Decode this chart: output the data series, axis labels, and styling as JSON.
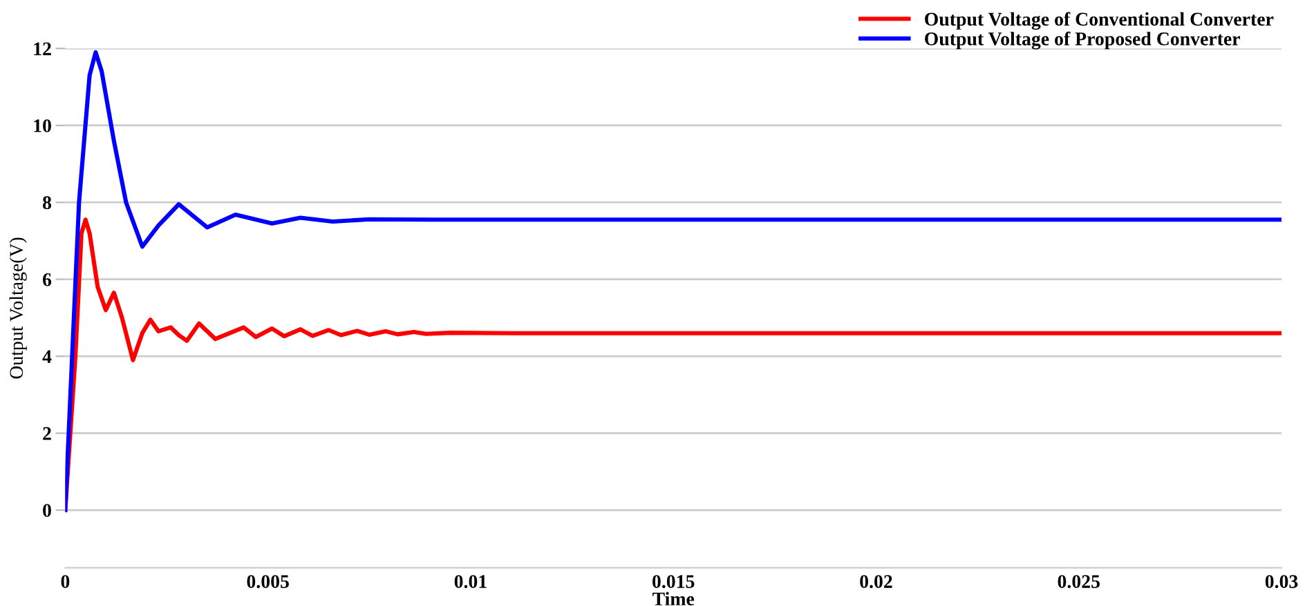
{
  "chart_data": {
    "type": "line",
    "xlabel": "Time",
    "ylabel": "Output Voltage(V)",
    "xlim": [
      0,
      0.03
    ],
    "ylim": [
      -1.5,
      12
    ],
    "xticks": [
      0,
      0.005,
      0.01,
      0.015,
      0.02,
      0.025,
      0.03
    ],
    "yticks": [
      0,
      2,
      4,
      6,
      8,
      10,
      12
    ],
    "grid": "y",
    "legend": "top right",
    "series": [
      {
        "name": "Output Voltage of Conventional Converter",
        "color": "#ff0000",
        "x": [
          0,
          0.00025,
          0.0004,
          0.0005,
          0.0006,
          0.0008,
          0.001,
          0.0012,
          0.0014,
          0.00167,
          0.0019,
          0.0021,
          0.0023,
          0.0026,
          0.0028,
          0.003,
          0.0033,
          0.0037,
          0.0044,
          0.0047,
          0.0051,
          0.0054,
          0.0058,
          0.0061,
          0.0065,
          0.0068,
          0.0072,
          0.0075,
          0.0079,
          0.0082,
          0.0086,
          0.0089,
          0.0095,
          0.011,
          0.03
        ],
        "values": [
          0,
          4,
          7.2,
          7.55,
          7.2,
          5.8,
          5.2,
          5.65,
          5.0,
          3.9,
          4.6,
          4.95,
          4.65,
          4.75,
          4.55,
          4.4,
          4.85,
          4.45,
          4.75,
          4.5,
          4.72,
          4.52,
          4.7,
          4.53,
          4.68,
          4.55,
          4.66,
          4.56,
          4.65,
          4.57,
          4.63,
          4.58,
          4.61,
          4.6,
          4.6
        ]
      },
      {
        "name": "Output Voltage of Proposed Converter",
        "color": "#0000ff",
        "x": [
          0,
          0.00034,
          0.0006,
          0.00075,
          0.0009,
          0.0012,
          0.0015,
          0.0019,
          0.0023,
          0.0028,
          0.0035,
          0.0042,
          0.0051,
          0.0058,
          0.0066,
          0.0075,
          0.009,
          0.03
        ],
        "values": [
          0,
          8,
          11.3,
          11.9,
          11.4,
          9.6,
          8,
          6.85,
          7.4,
          7.95,
          7.35,
          7.68,
          7.45,
          7.6,
          7.5,
          7.56,
          7.55,
          7.55
        ]
      }
    ]
  }
}
